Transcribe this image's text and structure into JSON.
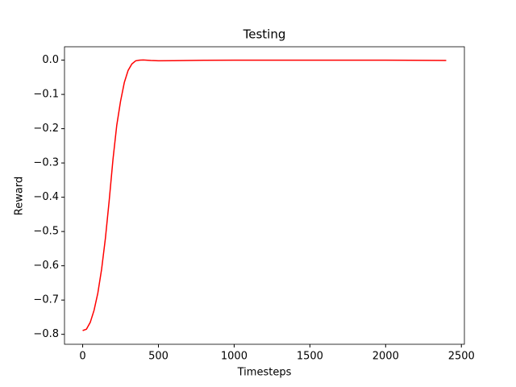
{
  "chart_data": {
    "type": "line",
    "title": "Testing",
    "xlabel": "Timesteps",
    "ylabel": "Reward",
    "x": [
      0,
      25,
      50,
      75,
      100,
      125,
      150,
      175,
      200,
      225,
      250,
      275,
      300,
      325,
      350,
      375,
      400,
      450,
      500,
      600,
      800,
      1000,
      1500,
      2000,
      2400
    ],
    "series": [
      {
        "color": "#ff0000",
        "values": [
          -0.789,
          -0.785,
          -0.765,
          -0.73,
          -0.68,
          -0.61,
          -0.52,
          -0.41,
          -0.29,
          -0.19,
          -0.12,
          -0.065,
          -0.03,
          -0.011,
          -0.002,
          0.0,
          0.0005,
          -0.001,
          -0.002,
          -0.0015,
          -0.0005,
          0.0,
          0.0,
          0.0,
          -0.001
        ]
      }
    ],
    "xlim": [
      -120,
      2520
    ],
    "ylim": [
      -0.829,
      0.039
    ],
    "xticks": [
      0,
      500,
      1000,
      1500,
      2000,
      2500
    ],
    "yticks": [
      {
        "value": 0.0,
        "label": "0.0"
      },
      {
        "value": -0.1,
        "label": "−0.1"
      },
      {
        "value": -0.2,
        "label": "−0.2"
      },
      {
        "value": -0.3,
        "label": "−0.3"
      },
      {
        "value": -0.4,
        "label": "−0.4"
      },
      {
        "value": -0.5,
        "label": "−0.5"
      },
      {
        "value": -0.6,
        "label": "−0.6"
      },
      {
        "value": -0.7,
        "label": "−0.7"
      },
      {
        "value": -0.8,
        "label": "−0.8"
      }
    ],
    "grid": false
  }
}
